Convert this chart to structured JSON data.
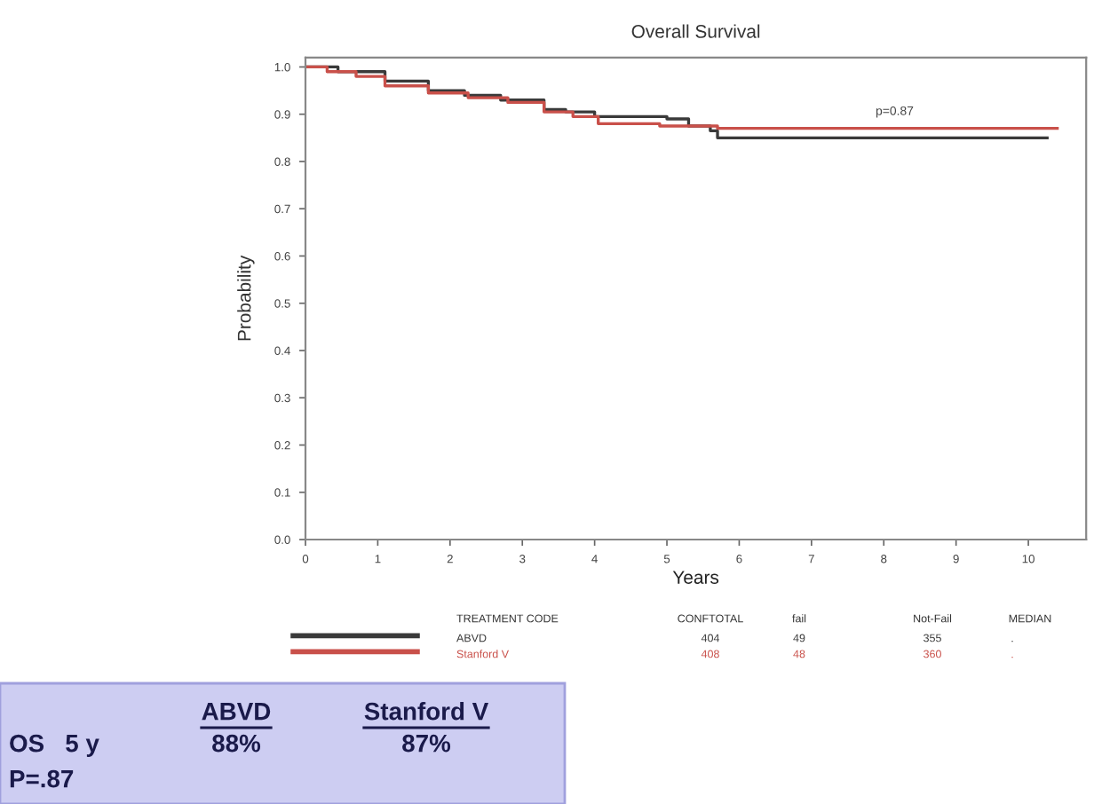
{
  "chart_data": {
    "type": "step",
    "title": "Overall Survival",
    "xlabel": "Years",
    "ylabel": "Probability",
    "xlim": [
      0,
      10.8
    ],
    "ylim": [
      0,
      1.02
    ],
    "xticks": [
      0,
      1,
      2,
      3,
      4,
      5,
      6,
      7,
      8,
      9,
      10
    ],
    "yticks": [
      {
        "value": 0,
        "label": "0.0"
      },
      {
        "value": 0.1,
        "label": "0.1"
      },
      {
        "value": 0.2,
        "label": "0.2"
      },
      {
        "value": 0.3,
        "label": "0.3"
      },
      {
        "value": 0.4,
        "label": "0.4"
      },
      {
        "value": 0.5,
        "label": "0.5"
      },
      {
        "value": 0.6,
        "label": "0.6"
      },
      {
        "value": 0.7,
        "label": "0.7"
      },
      {
        "value": 0.8,
        "label": "0.8"
      },
      {
        "value": 0.9,
        "label": "0.9"
      },
      {
        "value": 1.0,
        "label": "1.0"
      }
    ],
    "grid": false,
    "legend": "bottom",
    "marker": "none",
    "line_style": "solid",
    "series": [
      {
        "name": "ABVD",
        "color": "#3a3a3a",
        "x": [
          0,
          0.45,
          1.1,
          1.7,
          2.2,
          2.7,
          3.3,
          3.6,
          4.0,
          5.0,
          5.3,
          5.6,
          5.7,
          10.26
        ],
        "values": [
          1.0,
          0.99,
          0.97,
          0.95,
          0.94,
          0.93,
          0.91,
          0.905,
          0.895,
          0.89,
          0.875,
          0.865,
          0.85,
          0.85
        ]
      },
      {
        "name": "Stanford V",
        "color": "#c9504a",
        "x": [
          0,
          0.3,
          0.7,
          1.1,
          1.7,
          2.25,
          2.8,
          3.3,
          3.7,
          4.05,
          4.9,
          5.7,
          10.4
        ],
        "values": [
          1.0,
          0.99,
          0.98,
          0.96,
          0.945,
          0.935,
          0.925,
          0.905,
          0.895,
          0.88,
          0.875,
          0.87,
          0.87
        ]
      }
    ],
    "annotations": [
      "TREATMENT CODE",
      "CONFTOTAL",
      "fail",
      "Not-Fail",
      "MEDIAN",
      "404",
      "49",
      "355",
      ".",
      "408",
      "48",
      "360",
      ".",
      "p=0.87",
      "ABVD",
      "Stanford V",
      "OS   5 y",
      "88%",
      "87%",
      "P=.87"
    ]
  }
}
